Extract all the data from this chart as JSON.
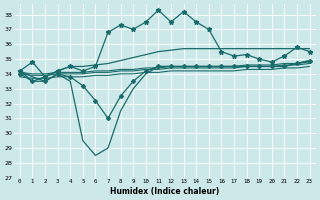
{
  "xlabel": "Humidex (Indice chaleur)",
  "xlim": [
    -0.5,
    23.5
  ],
  "ylim": [
    27,
    38.7
  ],
  "yticks": [
    27,
    28,
    29,
    30,
    31,
    32,
    33,
    34,
    35,
    36,
    37,
    38
  ],
  "xticks": [
    0,
    1,
    2,
    3,
    4,
    5,
    6,
    7,
    8,
    9,
    10,
    11,
    12,
    13,
    14,
    15,
    16,
    17,
    18,
    19,
    20,
    21,
    22,
    23
  ],
  "bg_color": "#cce8e8",
  "grid_color": "#b8d8d8",
  "line_color": "#1a6b6b",
  "series": {
    "flat1_x": [
      0,
      1,
      2,
      3,
      4,
      5,
      6,
      7,
      8,
      9,
      10,
      11,
      12,
      13,
      14,
      15,
      16,
      17,
      18,
      19,
      20,
      21,
      22,
      23
    ],
    "flat1_y": [
      34.1,
      34.0,
      34.0,
      34.1,
      34.1,
      34.1,
      34.2,
      34.2,
      34.3,
      34.3,
      34.4,
      34.4,
      34.5,
      34.5,
      34.5,
      34.5,
      34.5,
      34.5,
      34.6,
      34.6,
      34.6,
      34.7,
      34.7,
      34.8
    ],
    "flat2_x": [
      0,
      1,
      2,
      3,
      4,
      5,
      6,
      7,
      8,
      9,
      10,
      11,
      12,
      13,
      14,
      15,
      16,
      17,
      18,
      19,
      20,
      21,
      22,
      23
    ],
    "flat2_y": [
      34.0,
      33.9,
      33.9,
      34.0,
      34.0,
      34.0,
      34.1,
      34.1,
      34.2,
      34.2,
      34.3,
      34.3,
      34.4,
      34.4,
      34.4,
      34.4,
      34.4,
      34.4,
      34.5,
      34.5,
      34.5,
      34.6,
      34.6,
      34.7
    ],
    "flat3_x": [
      0,
      1,
      2,
      3,
      4,
      5,
      6,
      7,
      8,
      9,
      10,
      11,
      12,
      13,
      14,
      15,
      16,
      17,
      18,
      19,
      20,
      21,
      22,
      23
    ],
    "flat3_y": [
      33.8,
      33.7,
      33.7,
      33.8,
      33.8,
      33.8,
      33.9,
      33.9,
      34.0,
      34.0,
      34.1,
      34.1,
      34.2,
      34.2,
      34.2,
      34.2,
      34.2,
      34.2,
      34.3,
      34.3,
      34.3,
      34.4,
      34.4,
      34.5
    ],
    "rising_x": [
      0,
      1,
      2,
      3,
      4,
      5,
      6,
      7,
      8,
      9,
      10,
      11,
      12,
      13,
      14,
      15,
      16,
      17,
      18,
      19,
      20,
      21,
      22,
      23
    ],
    "rising_y": [
      34.2,
      33.5,
      33.8,
      34.2,
      34.5,
      34.5,
      34.6,
      34.7,
      34.9,
      35.1,
      35.3,
      35.5,
      35.6,
      35.7,
      35.7,
      35.7,
      35.7,
      35.7,
      35.7,
      35.7,
      35.7,
      35.7,
      35.7,
      35.7
    ],
    "peak_x": [
      0,
      1,
      2,
      3,
      4,
      5,
      6,
      7,
      8,
      9,
      10,
      11,
      12,
      13,
      14,
      15,
      16,
      17,
      18,
      19,
      20,
      21,
      22,
      23
    ],
    "peak_y": [
      34.2,
      34.8,
      33.8,
      34.2,
      34.5,
      34.2,
      34.5,
      36.8,
      37.3,
      37.0,
      37.5,
      38.3,
      37.5,
      38.2,
      37.5,
      37.0,
      35.5,
      35.2,
      35.3,
      35.0,
      34.8,
      35.2,
      35.8,
      35.5
    ],
    "dip_x": [
      0,
      1,
      2,
      3,
      4,
      5,
      6,
      7,
      8,
      9,
      10,
      11,
      12,
      13,
      14,
      15,
      16,
      17,
      18,
      19,
      20,
      21,
      22,
      23
    ],
    "dip_y": [
      34.0,
      33.5,
      33.5,
      34.0,
      33.8,
      33.2,
      32.2,
      31.0,
      32.5,
      33.5,
      34.2,
      34.5,
      34.5,
      34.5,
      34.5,
      34.5,
      34.5,
      34.5,
      34.5,
      34.5,
      34.5,
      34.5,
      34.7,
      34.9
    ],
    "valley_x": [
      0,
      1,
      2,
      3,
      4,
      5,
      6,
      7,
      8,
      9,
      10,
      11,
      12,
      13,
      14,
      15,
      16,
      17,
      18,
      19,
      20,
      21,
      22,
      23
    ],
    "valley_y": [
      34.2,
      33.8,
      33.5,
      34.0,
      33.5,
      29.5,
      28.5,
      29.0,
      31.5,
      33.0,
      34.0,
      34.5,
      34.5,
      34.5,
      34.5,
      34.5,
      34.5,
      34.5,
      34.5,
      34.5,
      34.5,
      34.5,
      34.7,
      34.9
    ]
  }
}
